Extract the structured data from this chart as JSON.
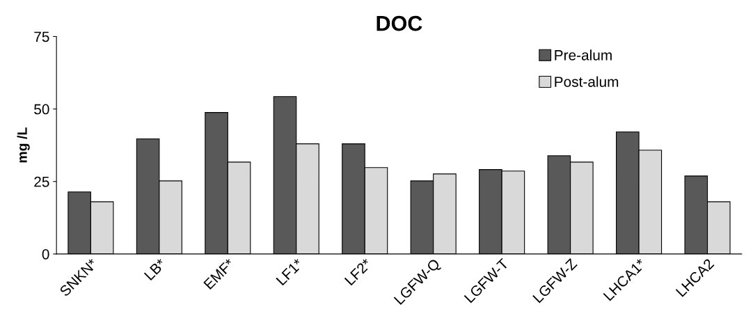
{
  "chart_data": {
    "type": "bar",
    "title": "DOC",
    "ylabel": "mg /L",
    "categories": [
      "SNKN*",
      "LB*",
      "EMF*",
      "LF1*",
      "LF2*",
      "LGFW-Q",
      "LGFW-T",
      "LGFW-Z",
      "LHCA1*",
      "LHCA2"
    ],
    "series": [
      {
        "name": "Pre-alum",
        "color": "#595959",
        "values": [
          21.4,
          39.7,
          48.8,
          54.3,
          38.0,
          25.2,
          29.1,
          33.9,
          42.1,
          26.9
        ]
      },
      {
        "name": "Post-alum",
        "color": "#d9d9d9",
        "values": [
          18.0,
          25.2,
          31.7,
          38.0,
          29.8,
          27.6,
          28.6,
          31.7,
          35.8,
          18.0
        ]
      }
    ],
    "ylim": [
      0,
      75
    ],
    "yticks": [
      0,
      25,
      50,
      75
    ],
    "grid": false,
    "legend": "top right"
  }
}
